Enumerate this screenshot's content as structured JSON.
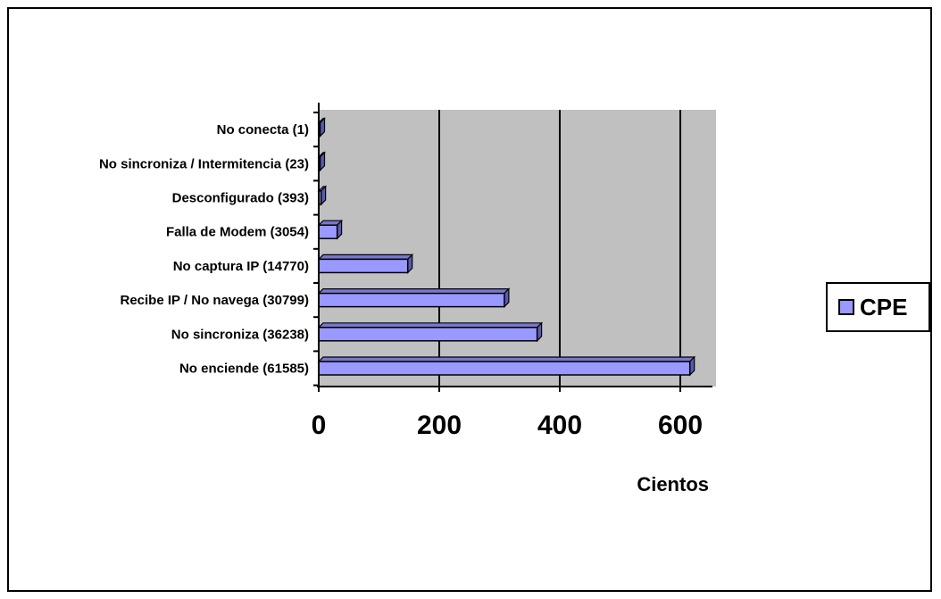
{
  "chart_data": {
    "type": "bar",
    "orientation": "horizontal",
    "categories": [
      "No enciende (61585)",
      "No sincroniza (36238)",
      "Recibe IP / No navega (30799)",
      "No captura IP (14770)",
      "Falla de Modem (3054)",
      "Desconfigurado (393)",
      "No sincroniza / Intermitencia (23)",
      "No conecta (1)"
    ],
    "series": [
      {
        "name": "CPE",
        "values": [
          615.85,
          362.38,
          307.99,
          147.7,
          30.54,
          3.93,
          0.23,
          0.01
        ],
        "color": "#9999ff"
      }
    ],
    "xlabel": "Cientos",
    "ylabel": "",
    "xlim": [
      0,
      650
    ],
    "xticks": [
      0,
      200,
      400,
      600
    ],
    "xtick_labels": [
      "0",
      "200",
      "400",
      "600"
    ],
    "grid": "vertical",
    "plot_background": "#c0c0c0",
    "legend": {
      "position": "right",
      "label": "CPE"
    }
  }
}
